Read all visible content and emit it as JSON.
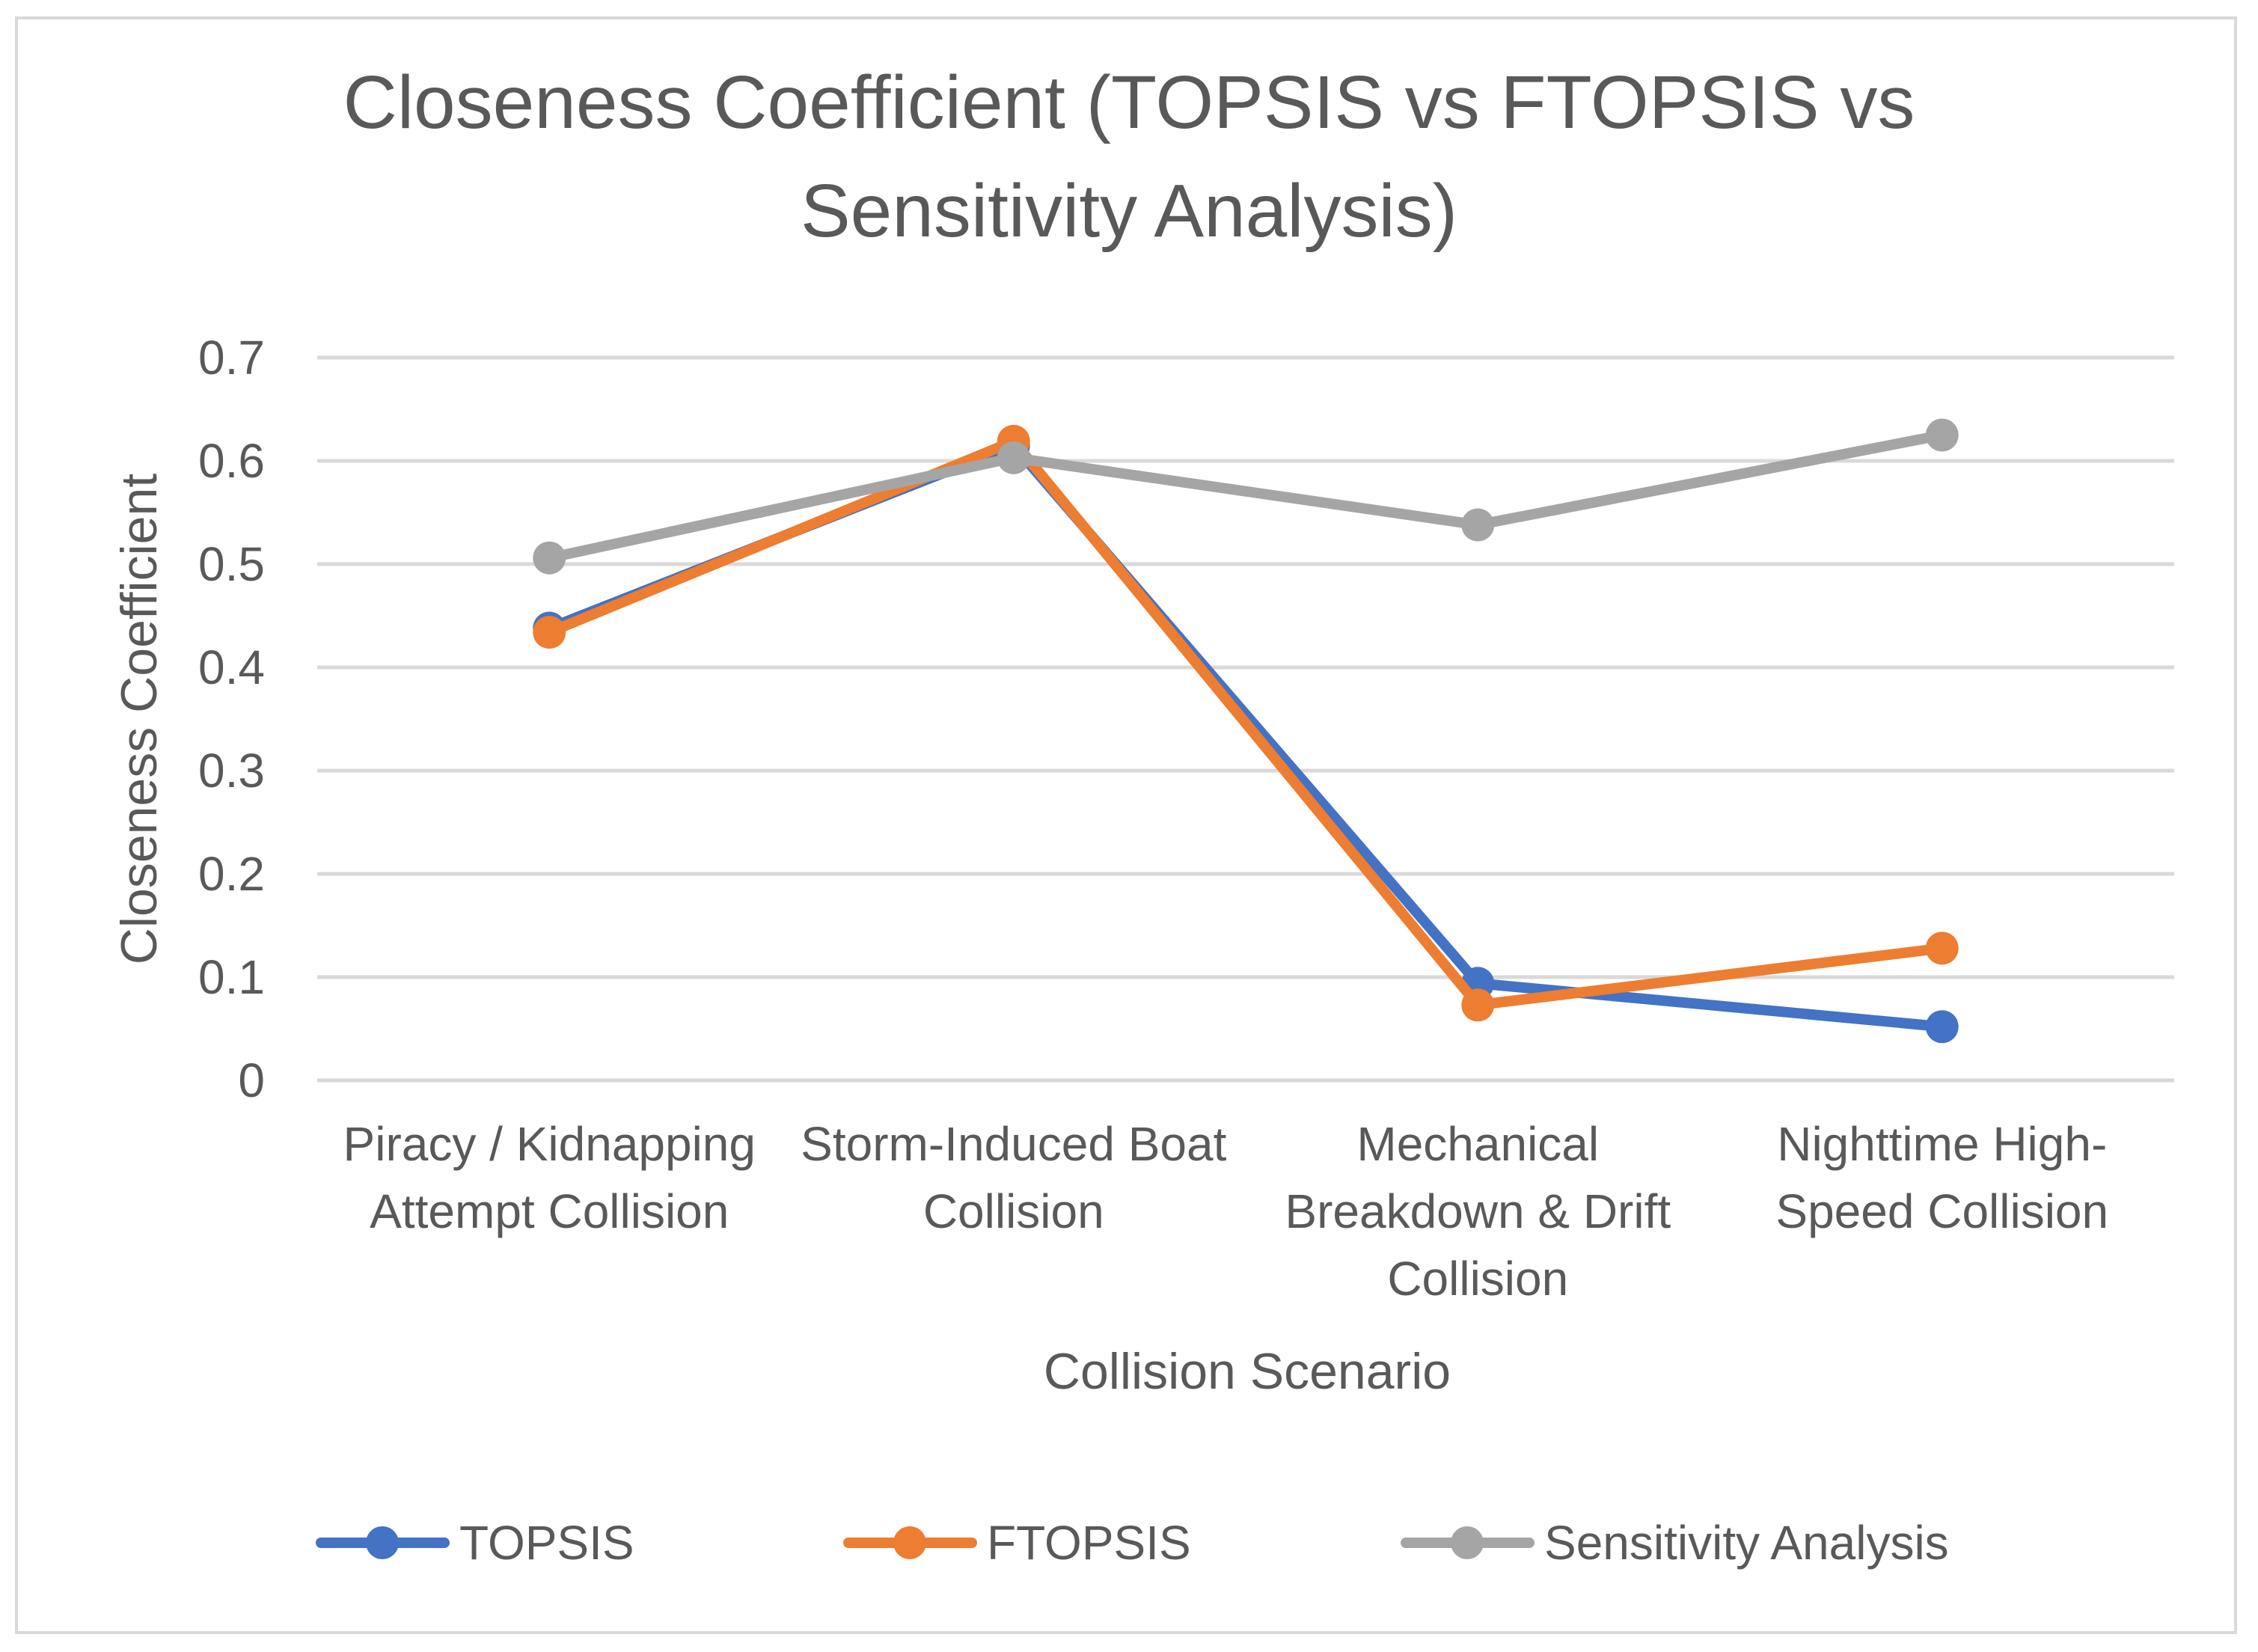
{
  "chart_data": {
    "type": "line",
    "title_lines": [
      "Closeness Coefficient (TOPSIS vs FTOPSIS vs",
      "Sensitivity Analysis)"
    ],
    "xlabel": "Collision Scenario",
    "ylabel": "Closeness Coefficient",
    "ylim": [
      0,
      0.7
    ],
    "yticks": [
      "0",
      "0.1",
      "0.2",
      "0.3",
      "0.4",
      "0.5",
      "0.6",
      "0.7"
    ],
    "categories": [
      "Piracy / Kidnapping Attempt Collision",
      "Storm-Induced Boat Collision",
      "Mechanical Breakdown & Drift Collision",
      "Nighttime High-Speed Collision"
    ],
    "category_lines": [
      [
        "Piracy / Kidnapping",
        "Attempt Collision"
      ],
      [
        "Storm-Induced Boat",
        "Collision"
      ],
      [
        "Mechanical",
        "Breakdown & Drift",
        "Collision"
      ],
      [
        "Nighttime High-",
        "Speed Collision"
      ]
    ],
    "series": [
      {
        "name": "TOPSIS",
        "color": "#4472c4",
        "values": [
          0.438,
          0.615,
          0.094,
          0.052
        ]
      },
      {
        "name": "FTOPSIS",
        "color": "#ed7d31",
        "values": [
          0.434,
          0.619,
          0.073,
          0.128
        ]
      },
      {
        "name": "Sensitivity Analysis",
        "color": "#a5a5a5",
        "values": [
          0.506,
          0.603,
          0.538,
          0.625
        ]
      }
    ],
    "grid": true,
    "legend_position": "bottom"
  }
}
